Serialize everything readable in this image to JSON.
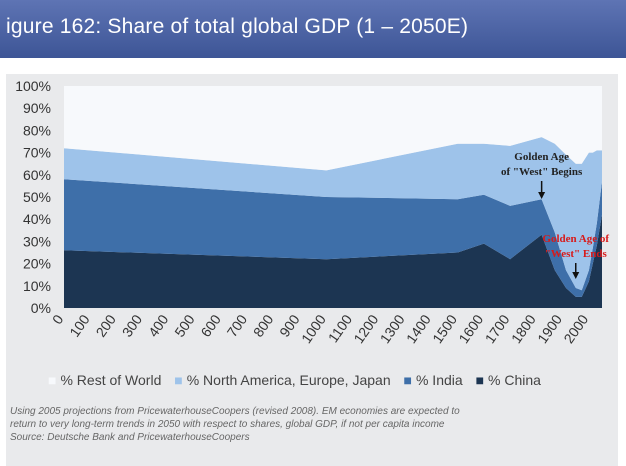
{
  "chart_data": {
    "type": "area",
    "stacked": true,
    "title": "igure 162: Share of total global GDP (1 – 2050E)",
    "x": [
      0,
      1000,
      1500,
      1600,
      1700,
      1820,
      1870,
      1913,
      1950,
      1973,
      2000,
      2015,
      2030,
      2050
    ],
    "xticks": [
      "0",
      "100",
      "200",
      "300",
      "400",
      "500",
      "600",
      "700",
      "800",
      "900",
      "1000",
      "1100",
      "1200",
      "1300",
      "1400",
      "1500",
      "1600",
      "1700",
      "1800",
      "1900",
      "2000"
    ],
    "yticks": [
      "0%",
      "10%",
      "20%",
      "30%",
      "40%",
      "50%",
      "60%",
      "70%",
      "80%",
      "90%",
      "100%"
    ],
    "ylim": [
      0,
      100
    ],
    "grid": false,
    "legend_position": "bottom",
    "series": [
      {
        "name": "% China",
        "color": "#1c3552",
        "values": [
          26,
          22,
          25,
          29,
          22,
          33,
          17,
          9,
          5,
          5,
          12,
          20,
          28,
          42
        ]
      },
      {
        "name": "% India",
        "color": "#3e6fa9",
        "values": [
          32,
          28,
          24,
          22,
          24,
          16,
          17,
          8,
          4,
          3,
          5,
          7,
          10,
          15
        ]
      },
      {
        "name": "% North America, Europe, Japan",
        "color": "#9ec3ea",
        "values": [
          14,
          12,
          25,
          23,
          27,
          28,
          40,
          52,
          56,
          57,
          53,
          43,
          33,
          14
        ]
      },
      {
        "name": "% Rest of World",
        "color": "#f7f9fc",
        "values": [
          28,
          38,
          26,
          26,
          27,
          23,
          26,
          31,
          35,
          35,
          30,
          30,
          29,
          29
        ]
      }
    ],
    "annotations": [
      {
        "text_lines": [
          "Golden Age",
          "of \"West\" Begins"
        ],
        "x": 1820,
        "color": "#222222"
      },
      {
        "text_lines": [
          "Golden Age of",
          "\"West\" Ends"
        ],
        "x": 1950,
        "color": "#d81a1a"
      }
    ]
  },
  "footnote": {
    "line1": "Using 2005 projections from PricewaterhouseCoopers (revised 2008). EM economies are expected to",
    "line2": "return to very long-term trends in 2050 with respect to shares, global GDP, if not per capita income",
    "line3": "Source: Deutsche Bank and PricewaterhouseCoopers"
  }
}
